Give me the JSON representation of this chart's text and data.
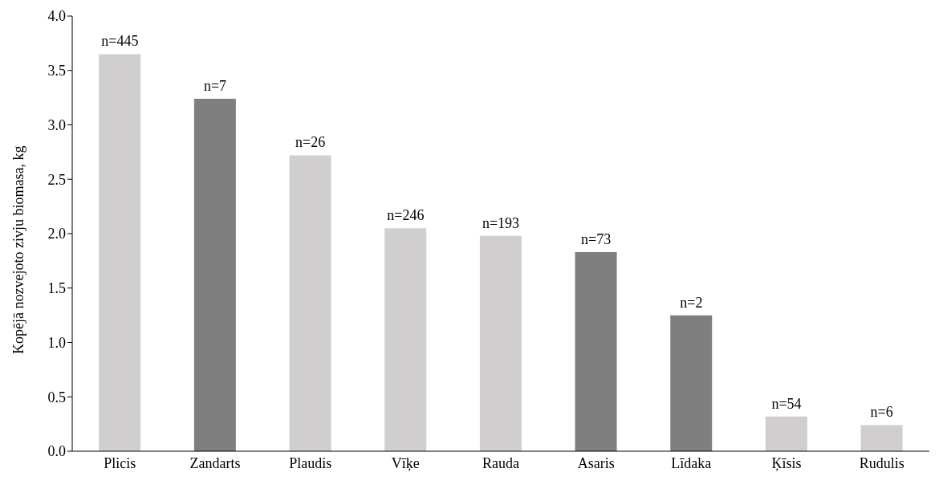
{
  "chart_data": {
    "type": "bar",
    "ylabel": "Kopējā nozvejoto zivju biomasa, kg",
    "categories": [
      "Plicis",
      "Zandarts",
      "Plaudis",
      "Vīķe",
      "Rauda",
      "Asaris",
      "Līdaka",
      "Ķīsis",
      "Rudulis"
    ],
    "values": [
      3.65,
      3.24,
      2.72,
      2.05,
      1.98,
      1.83,
      1.25,
      0.32,
      0.24
    ],
    "colors": [
      "#d0cece",
      "#7f7f7f",
      "#d0cece",
      "#d0cece",
      "#d0cece",
      "#7f7f7f",
      "#7f7f7f",
      "#d0cece",
      "#d0cece"
    ],
    "annotations": [
      {
        "text": "n=445",
        "x": "Plicis",
        "y": 3.65
      },
      {
        "text": "n=7",
        "x": "Zandarts",
        "y": 3.24
      },
      {
        "text": "n=26",
        "x": "Plaudis",
        "y": 2.72
      },
      {
        "text": "n=246",
        "x": "Vīķe",
        "y": 2.05
      },
      {
        "text": "n=193",
        "x": "Rauda",
        "y": 1.98
      },
      {
        "text": "n=73",
        "x": "Asaris",
        "y": 1.83
      },
      {
        "text": "n=2",
        "x": "Līdaka",
        "y": 1.25
      },
      {
        "text": "n=54",
        "x": "Ķīsis",
        "y": 0.32
      },
      {
        "text": "n=6",
        "x": "Rudulis",
        "y": 0.24
      }
    ],
    "ylim": [
      0,
      4
    ],
    "yticks": [
      {
        "value": 0,
        "label": "0.0"
      },
      {
        "value": 0.5,
        "label": "0.5"
      },
      {
        "value": 1,
        "label": "1.0"
      },
      {
        "value": 1.5,
        "label": "1.5"
      },
      {
        "value": 2,
        "label": "2.0"
      },
      {
        "value": 2.5,
        "label": "2.5"
      },
      {
        "value": 3,
        "label": "3.0"
      },
      {
        "value": 3.5,
        "label": "3.5"
      },
      {
        "value": 4,
        "label": "4.0"
      }
    ],
    "grid": false,
    "legend": false
  }
}
